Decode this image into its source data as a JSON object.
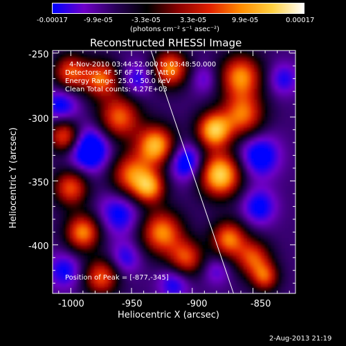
{
  "colorbar": {
    "tick_labels": [
      "-0.00017",
      "-9.9e-05",
      "-3.3e-05",
      "3.3e-05",
      "9.9e-05",
      "0.00017"
    ],
    "unit_label": "(photons cm⁻² s⁻¹ asec⁻²)",
    "gradient_stops": [
      "#0000ff",
      "#6f00c8",
      "#2a005a",
      "#000000",
      "#8a0000",
      "#e02000",
      "#ff8c00",
      "#ffd040",
      "#ffffff"
    ]
  },
  "chart_data": {
    "type": "heatmap",
    "title": "Reconstructed RHESSI Image",
    "xlabel": "Heliocentric X (arcsec)",
    "ylabel": "Heliocentric Y (arcsec)",
    "xlim": [
      -1015,
      -815
    ],
    "ylim": [
      -438,
      -248
    ],
    "x_ticks": [
      -1000,
      -950,
      -900,
      -850
    ],
    "x_tick_labels": [
      "-1000",
      "-950",
      "-900",
      "-850"
    ],
    "y_ticks": [
      -250,
      -300,
      -350,
      -400
    ],
    "y_tick_labels": [
      "-250",
      "-300",
      "-350",
      "-400"
    ],
    "annotations": [
      "4-Nov-2010 03:44:52.000 to 03:48:50.000",
      "Detectors: 4F 5F 6F 7F 8F, Att 0",
      "Energy Range: 25.0 - 50.0 keV",
      "Clean    Total counts: 4.27E+03"
    ],
    "peak_label": "Position of Peak = [-877,-345]",
    "peak": [
      -877,
      -345
    ],
    "limb_line": [
      [
        -934,
        -248
      ],
      [
        -866,
        -438
      ]
    ],
    "blobs": [
      {
        "x": -877,
        "y": -345,
        "v": 1.0,
        "s": 12
      },
      {
        "x": -882,
        "y": -310,
        "v": 0.9,
        "s": 10
      },
      {
        "x": -918,
        "y": -262,
        "v": 0.7,
        "s": 10
      },
      {
        "x": -860,
        "y": -268,
        "v": 0.7,
        "s": 12
      },
      {
        "x": -858,
        "y": -298,
        "v": 0.6,
        "s": 12
      },
      {
        "x": -930,
        "y": -322,
        "v": 0.85,
        "s": 11
      },
      {
        "x": -950,
        "y": -345,
        "v": 0.6,
        "s": 12
      },
      {
        "x": -935,
        "y": -355,
        "v": 0.6,
        "s": 9
      },
      {
        "x": -960,
        "y": -300,
        "v": 0.6,
        "s": 12
      },
      {
        "x": -975,
        "y": -270,
        "v": 0.6,
        "s": 10
      },
      {
        "x": -1000,
        "y": -265,
        "v": 0.55,
        "s": 10
      },
      {
        "x": -1000,
        "y": -355,
        "v": 0.55,
        "s": 10
      },
      {
        "x": -1005,
        "y": -315,
        "v": 0.6,
        "s": 9
      },
      {
        "x": -990,
        "y": -390,
        "v": 0.7,
        "s": 10
      },
      {
        "x": -975,
        "y": -425,
        "v": 0.55,
        "s": 10
      },
      {
        "x": -925,
        "y": -390,
        "v": 0.7,
        "s": 12
      },
      {
        "x": -905,
        "y": -410,
        "v": 0.5,
        "s": 10
      },
      {
        "x": -870,
        "y": -395,
        "v": 0.65,
        "s": 10
      },
      {
        "x": -850,
        "y": -410,
        "v": 0.5,
        "s": 10
      },
      {
        "x": -840,
        "y": -425,
        "v": 0.45,
        "s": 8
      },
      {
        "x": -985,
        "y": -325,
        "v": -0.9,
        "s": 12
      },
      {
        "x": -960,
        "y": -375,
        "v": -0.6,
        "s": 12
      },
      {
        "x": -1008,
        "y": -290,
        "v": -0.6,
        "s": 10
      },
      {
        "x": -905,
        "y": -335,
        "v": -0.75,
        "s": 10
      },
      {
        "x": -845,
        "y": -330,
        "v": -0.7,
        "s": 12
      },
      {
        "x": -845,
        "y": -370,
        "v": -0.6,
        "s": 10
      },
      {
        "x": -945,
        "y": -270,
        "v": -0.5,
        "s": 9
      },
      {
        "x": -915,
        "y": -430,
        "v": -0.55,
        "s": 9
      },
      {
        "x": -890,
        "y": -270,
        "v": -0.4,
        "s": 8
      },
      {
        "x": -1005,
        "y": -420,
        "v": -0.55,
        "s": 10
      },
      {
        "x": -955,
        "y": -410,
        "v": -0.5,
        "s": 9
      },
      {
        "x": -880,
        "y": -420,
        "v": -0.4,
        "s": 8
      },
      {
        "x": -825,
        "y": -270,
        "v": -0.5,
        "s": 9
      }
    ]
  },
  "footer": {
    "date_stamp": "2-Aug-2013 21:19"
  }
}
